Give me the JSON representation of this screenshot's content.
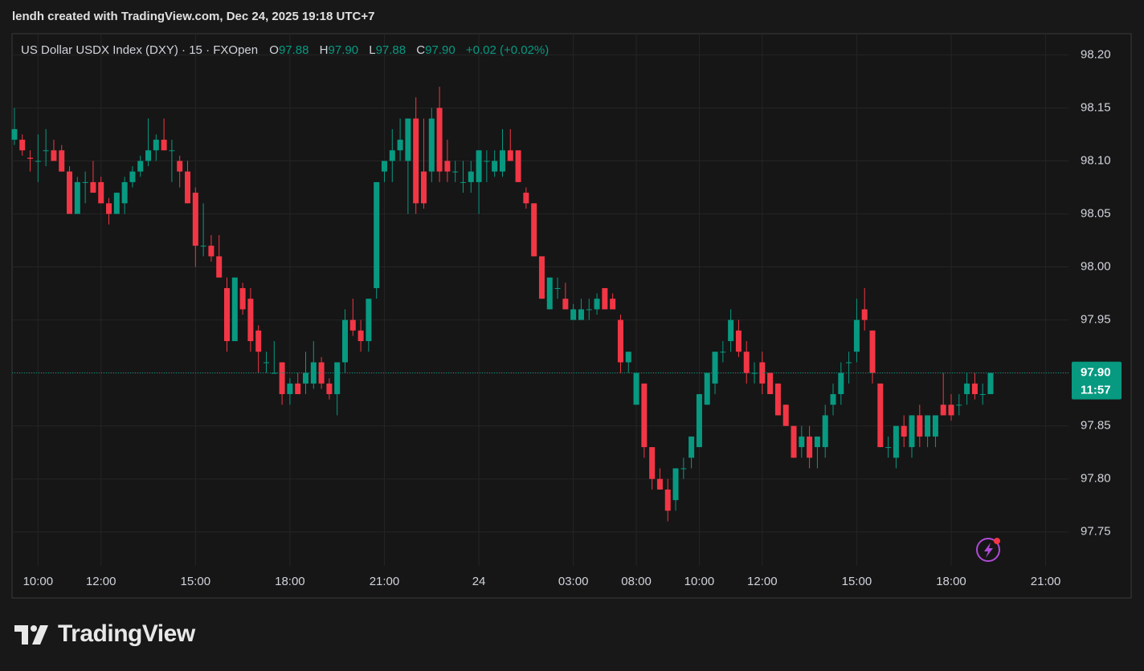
{
  "header": {
    "credit": "lendh created with TradingView.com, Dec 24, 2025 19:18 UTC+7"
  },
  "footer": {
    "logo_text": "TradingView"
  },
  "chart_data": {
    "type": "candlestick",
    "title": "US Dollar USDX Index (DXY) · 15 · FXOpen",
    "legend": {
      "o_label": "O",
      "o": "97.88",
      "h_label": "H",
      "h": "97.90",
      "l_label": "L",
      "l": "97.88",
      "c_label": "C",
      "c": "97.90",
      "change": "+0.02 (+0.02%)"
    },
    "up_color": "#089981",
    "down_color": "#f23645",
    "grid": true,
    "open": [
      98.12,
      98.12,
      98.103,
      98.1,
      98.11,
      98.11,
      98.11,
      98.09,
      98.05,
      98.08,
      98.08,
      98.08,
      98.06,
      98.05,
      98.06,
      98.08,
      98.09,
      98.1,
      98.11,
      98.12,
      98.11,
      98.1,
      98.09,
      98.07,
      98.02,
      98.02,
      98.01,
      97.98,
      97.93,
      97.98,
      97.97,
      97.94,
      97.91,
      97.9,
      97.91,
      97.88,
      97.89,
      97.89,
      97.89,
      97.91,
      97.89,
      97.88,
      97.91,
      97.95,
      97.94,
      97.93,
      97.98,
      98.09,
      98.1,
      98.11,
      98.1,
      98.14,
      98.09,
      98.09,
      98.15,
      98.1,
      98.09,
      98.08,
      98.08,
      98.08,
      98.1,
      98.09,
      98.09,
      98.11,
      98.11,
      98.07,
      98.06,
      98.01,
      97.96,
      97.98,
      97.97,
      97.95,
      97.95,
      97.96,
      97.96,
      97.98,
      97.97,
      97.95,
      97.91,
      97.87,
      97.89,
      97.83,
      97.8,
      97.79,
      97.78,
      97.81,
      97.82,
      97.83,
      97.87,
      97.89,
      97.92,
      97.93,
      97.94,
      97.92,
      97.9,
      97.91,
      97.9,
      97.89,
      97.87,
      97.85,
      97.83,
      97.84,
      97.83,
      97.83,
      97.87,
      97.88,
      97.91,
      97.92,
      97.96,
      97.94,
      97.89,
      97.83,
      97.82,
      97.85,
      97.83,
      97.86,
      97.84,
      97.84,
      97.87,
      97.87,
      97.87,
      97.88,
      97.89,
      97.88,
      97.88
    ],
    "high": [
      98.15,
      98.125,
      98.11,
      98.125,
      98.13,
      98.12,
      98.115,
      98.095,
      98.085,
      98.09,
      98.1,
      98.085,
      98.065,
      98.07,
      98.085,
      98.095,
      98.105,
      98.14,
      98.125,
      98.14,
      98.12,
      98.105,
      98.1,
      98.075,
      98.06,
      98.03,
      98.03,
      97.99,
      97.99,
      97.985,
      97.98,
      97.945,
      97.92,
      97.93,
      97.91,
      97.895,
      97.9,
      97.92,
      97.93,
      97.915,
      97.895,
      97.91,
      97.96,
      97.97,
      97.95,
      97.97,
      98.08,
      98.1,
      98.13,
      98.14,
      98.14,
      98.16,
      98.14,
      98.15,
      98.17,
      98.12,
      98.1,
      98.1,
      98.1,
      98.11,
      98.11,
      98.11,
      98.13,
      98.13,
      98.11,
      98.075,
      98.06,
      98.01,
      97.99,
      97.99,
      97.985,
      97.965,
      97.97,
      97.97,
      97.975,
      97.98,
      97.975,
      97.955,
      97.92,
      97.9,
      97.89,
      97.83,
      97.81,
      97.8,
      97.81,
      97.82,
      97.84,
      97.88,
      97.9,
      97.92,
      97.93,
      97.96,
      97.95,
      97.93,
      97.91,
      97.92,
      97.9,
      97.89,
      97.87,
      97.85,
      97.85,
      97.85,
      97.84,
      97.87,
      97.89,
      97.91,
      97.92,
      97.97,
      97.98,
      97.94,
      97.89,
      97.84,
      97.85,
      97.86,
      97.86,
      97.87,
      97.86,
      97.86,
      97.9,
      97.88,
      97.88,
      97.9,
      97.9,
      97.89,
      97.9
    ],
    "low": [
      98.115,
      98.105,
      98.09,
      98.08,
      98.095,
      98.1,
      98.09,
      98.05,
      98.05,
      98.06,
      98.07,
      98.06,
      98.04,
      98.05,
      98.05,
      98.075,
      98.085,
      98.095,
      98.1,
      98.11,
      98.08,
      98.075,
      98.06,
      98.0,
      98.01,
      98.005,
      97.99,
      97.92,
      97.93,
      97.955,
      97.92,
      97.9,
      97.9,
      97.9,
      97.87,
      97.87,
      97.88,
      97.88,
      97.885,
      97.885,
      97.875,
      97.86,
      97.9,
      97.935,
      97.92,
      97.92,
      97.97,
      98.08,
      98.08,
      98.1,
      98.05,
      98.05,
      98.055,
      98.08,
      98.08,
      98.08,
      98.08,
      98.07,
      98.07,
      98.05,
      98.08,
      98.085,
      98.085,
      98.1,
      98.08,
      98.055,
      98.01,
      97.97,
      97.96,
      97.97,
      97.96,
      97.95,
      97.95,
      97.95,
      97.955,
      97.96,
      97.96,
      97.9,
      97.9,
      97.87,
      97.82,
      97.79,
      97.79,
      97.76,
      97.77,
      97.8,
      97.81,
      97.83,
      97.87,
      97.88,
      97.91,
      97.92,
      97.915,
      97.89,
      97.89,
      97.88,
      97.88,
      97.86,
      97.85,
      97.82,
      97.82,
      97.81,
      97.81,
      97.82,
      97.86,
      97.87,
      97.89,
      97.91,
      97.94,
      97.89,
      97.83,
      97.82,
      97.81,
      97.83,
      97.82,
      97.83,
      97.83,
      97.83,
      97.86,
      97.855,
      97.86,
      97.87,
      97.875,
      97.87,
      97.88
    ],
    "close": [
      98.13,
      98.11,
      98.102,
      98.1,
      98.11,
      98.1,
      98.09,
      98.05,
      98.08,
      98.08,
      98.07,
      98.06,
      98.05,
      98.07,
      98.08,
      98.09,
      98.1,
      98.11,
      98.12,
      98.11,
      98.11,
      98.09,
      98.06,
      98.02,
      98.02,
      98.01,
      97.99,
      97.93,
      97.99,
      97.96,
      97.93,
      97.92,
      97.91,
      97.9,
      97.88,
      97.89,
      97.88,
      97.9,
      97.91,
      97.89,
      97.88,
      97.91,
      97.95,
      97.94,
      97.93,
      97.97,
      98.08,
      98.1,
      98.11,
      98.12,
      98.14,
      98.06,
      98.06,
      98.14,
      98.09,
      98.09,
      98.09,
      98.08,
      98.09,
      98.11,
      98.1,
      98.1,
      98.11,
      98.1,
      98.08,
      98.06,
      98.01,
      97.97,
      97.99,
      97.98,
      97.96,
      97.96,
      97.96,
      97.96,
      97.97,
      97.96,
      97.96,
      97.91,
      97.92,
      97.9,
      97.83,
      97.8,
      97.79,
      97.77,
      97.81,
      97.81,
      97.84,
      97.88,
      97.9,
      97.92,
      97.92,
      97.95,
      97.92,
      97.9,
      97.9,
      97.89,
      97.88,
      97.86,
      97.85,
      97.82,
      97.84,
      97.82,
      97.84,
      97.86,
      97.88,
      97.9,
      97.91,
      97.95,
      97.95,
      97.9,
      97.83,
      97.83,
      97.85,
      97.84,
      97.86,
      97.84,
      97.86,
      97.86,
      97.86,
      97.86,
      97.87,
      97.89,
      97.88,
      97.88,
      97.9
    ],
    "ylim": [
      97.718,
      98.22
    ],
    "yticks": [
      {
        "value": 97.75,
        "label": "97.75"
      },
      {
        "value": 97.8,
        "label": "97.80"
      },
      97.85,
      {
        "value": 97.9,
        "label": "97.90"
      },
      97.95,
      {
        "value": 98.0,
        "label": "98.00"
      },
      98.05,
      {
        "value": 98.1,
        "label": "98.10"
      },
      98.15,
      {
        "value": 98.2,
        "label": "98.20"
      }
    ],
    "xlim": [
      -0.3,
      133.9
    ],
    "xticks": [
      {
        "value": 3,
        "label": "10:00"
      },
      {
        "value": 11,
        "label": "12:00"
      },
      {
        "value": 23,
        "label": "15:00"
      },
      {
        "value": 35,
        "label": "18:00"
      },
      {
        "value": 47,
        "label": "21:00"
      },
      {
        "value": 59,
        "label": "24"
      },
      {
        "value": 71,
        "label": "03:00"
      },
      {
        "value": 79,
        "label": "08:00"
      },
      {
        "value": 87,
        "label": "10:00"
      },
      {
        "value": 95,
        "label": "12:00"
      },
      {
        "value": 107,
        "label": "15:00"
      },
      {
        "value": 119,
        "label": "18:00"
      },
      {
        "value": 131,
        "label": "21:00"
      }
    ],
    "last_price": {
      "value": 97.9,
      "label": "97.90"
    },
    "countdown": "11:57"
  }
}
